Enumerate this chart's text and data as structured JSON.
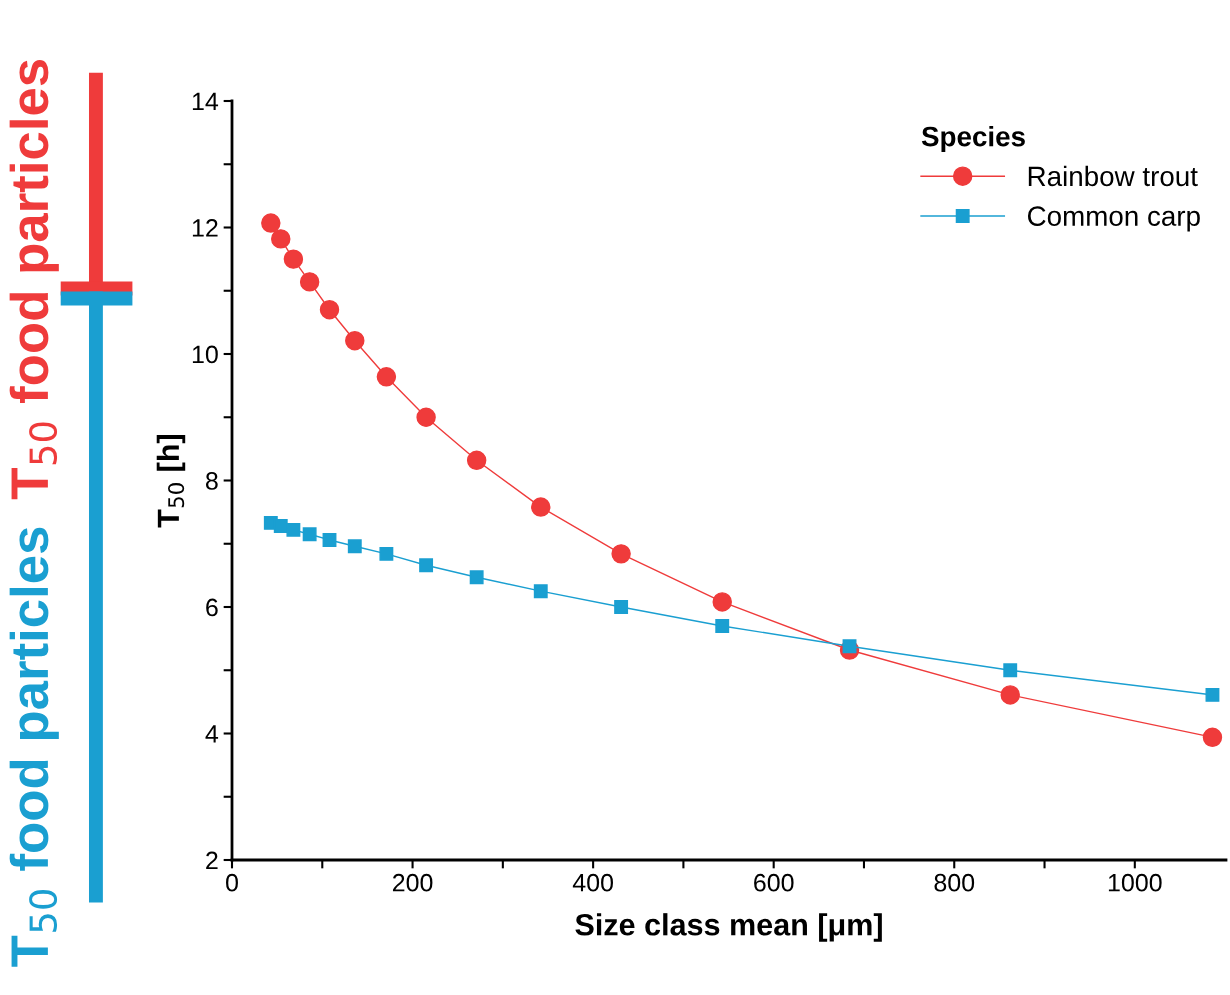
{
  "chart_data": {
    "type": "line",
    "xlabel": "Size class mean [μm]",
    "ylabel": "T$_{50}$ [h]",
    "legend_title": "Species",
    "legend": "top right",
    "grid": false,
    "x": [
      43,
      54,
      68,
      86,
      108,
      136,
      171,
      215,
      271,
      342,
      431,
      543,
      684,
      862,
      1086
    ],
    "series": [
      {
        "name": "Rainbow trout",
        "color": "#ef3b3b",
        "marker": "circle",
        "values": [
          12.07,
          11.82,
          11.5,
          11.14,
          10.7,
          10.21,
          9.64,
          9.0,
          8.32,
          7.58,
          6.84,
          6.08,
          5.32,
          4.61,
          3.94
        ]
      },
      {
        "name": "Common carp",
        "color": "#1a9fd1",
        "marker": "square",
        "values": [
          7.33,
          7.28,
          7.22,
          7.15,
          7.06,
          6.96,
          6.84,
          6.66,
          6.47,
          6.25,
          6.0,
          5.7,
          5.38,
          5.0,
          4.61
        ]
      }
    ],
    "xlim": [
      0,
      1101
    ],
    "ylim": [
      2,
      14
    ],
    "xticks": [
      0,
      {
        "value": 100,
        "label": null
      },
      200,
      {
        "value": 300,
        "label": null
      },
      400,
      {
        "value": 500,
        "label": null
      },
      600,
      {
        "value": 700,
        "label": null
      },
      800,
      {
        "value": 900,
        "label": null
      },
      1000
    ],
    "yticks": [
      2,
      {
        "value": 3,
        "label": null
      },
      4,
      {
        "value": 5,
        "label": null
      },
      6,
      {
        "value": 7,
        "label": null
      },
      8,
      {
        "value": 9,
        "label": null
      },
      10,
      {
        "value": 11,
        "label": null
      },
      12,
      {
        "value": 13,
        "label": null
      },
      14
    ],
    "annotations": [
      "T$_{50}$ food particles",
      "T$_{50}$ food particles"
    ]
  }
}
